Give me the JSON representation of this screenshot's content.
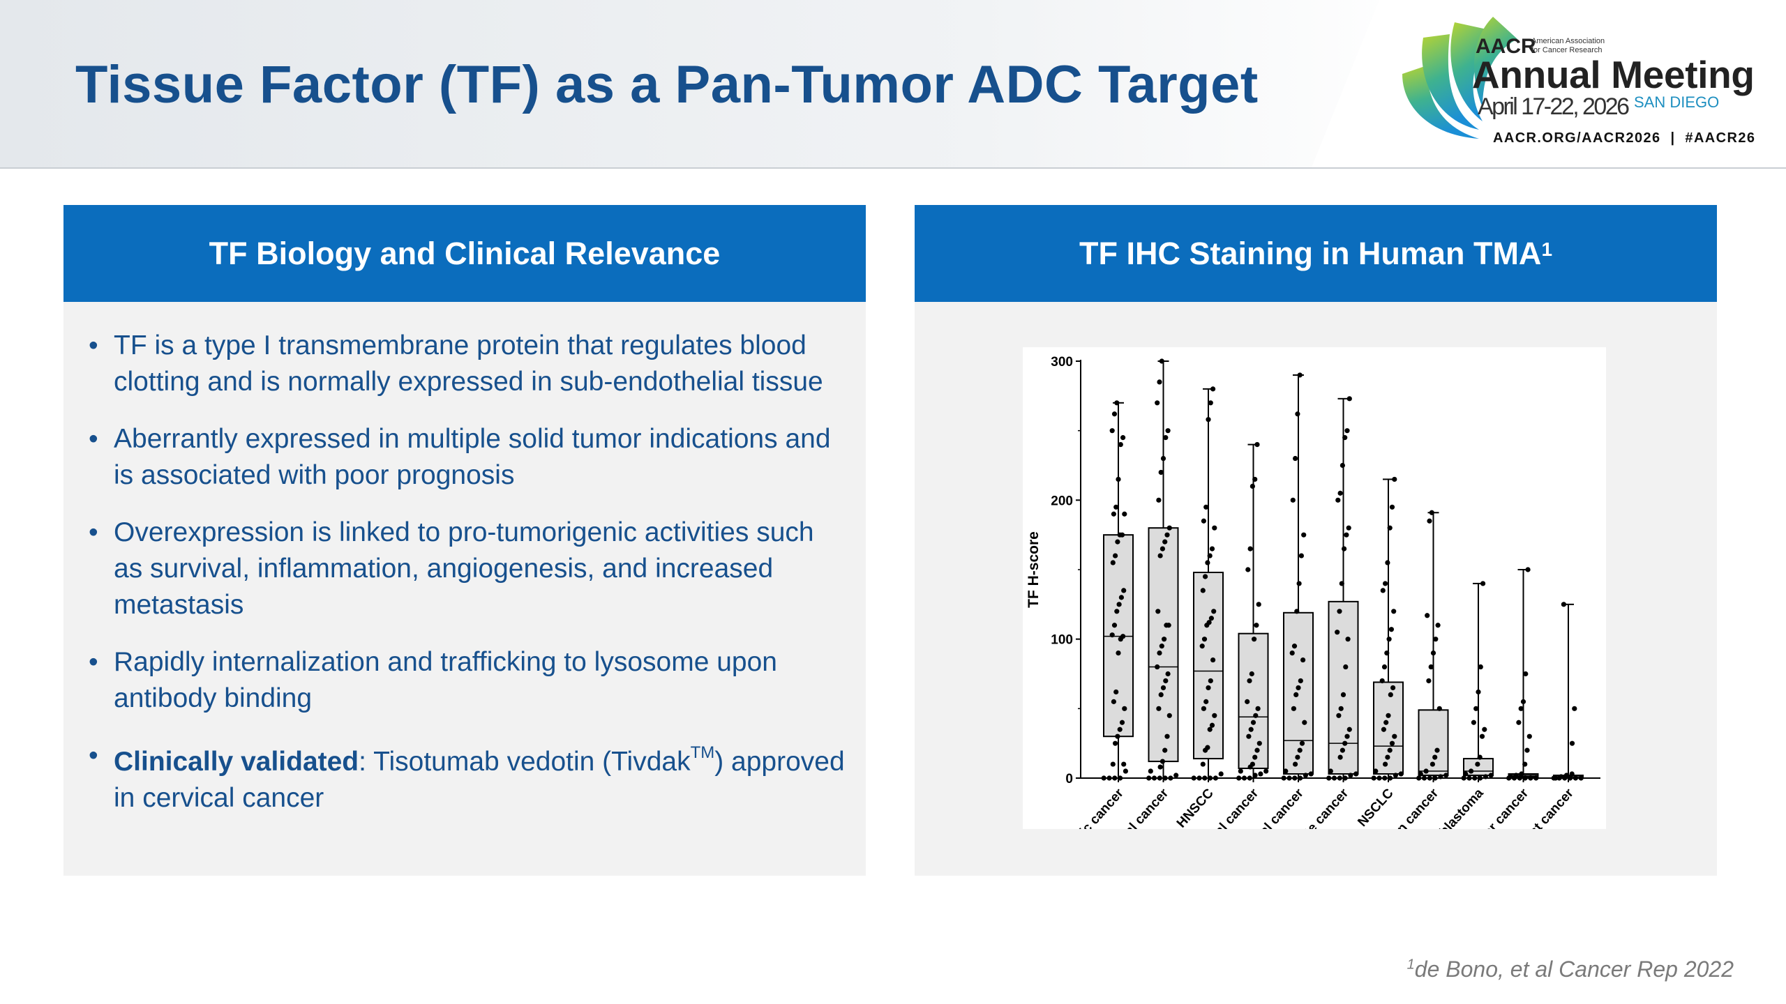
{
  "header": {
    "title": "Tissue Factor (TF) as a Pan-Tumor ADC Target",
    "logo": {
      "org": "AACR",
      "org_full_line1": "American Association",
      "org_full_line2": "for Cancer Research",
      "event": "Annual Meeting",
      "dates": "April 17-22, 2026",
      "city": "SAN DIEGO",
      "links": "AACR.ORG/AACR2026  |  #AACR26"
    }
  },
  "left_panel": {
    "title": "TF Biology and Clinical Relevance",
    "bullets": [
      "TF is a type I transmembrane protein that regulates blood clotting and is normally expressed in sub-endothelial tissue",
      "Aberrantly expressed in multiple solid tumor indications and is associated with poor prognosis",
      "Overexpression is linked to pro-tumorigenic activities such as survival, inflammation, angiogenesis, and increased metastasis",
      "Rapidly internalization and trafficking to lysosome upon antibody binding"
    ],
    "last_bullet": {
      "bold": "Clinically validated",
      "text1": ": Tisotumab vedotin (Tivdak",
      "tm": "TM",
      "text2": ") approved in cervical cancer"
    }
  },
  "right_panel": {
    "title": "TF IHC Staining in Human TMA",
    "title_sup": "1"
  },
  "chart_data": {
    "type": "box",
    "ylabel": "TF H-score",
    "xlabel": "",
    "ylim": [
      0,
      300
    ],
    "yticks": [
      "0",
      "100",
      "200",
      "300"
    ],
    "categories": [
      "Pancreatic cancer",
      "Cervical cancer",
      "HNSCC",
      "Endometrial cancer",
      "Esophageal cancer",
      "Prostate cancer",
      "NSCLC",
      "Ovarian cancer",
      "Glioblastoma",
      "Bladder cancer",
      "Breast cancer"
    ],
    "boxes": [
      {
        "min": 0,
        "q1": 30,
        "median": 102,
        "q3": 175,
        "max": 270
      },
      {
        "min": 0,
        "q1": 12,
        "median": 80,
        "q3": 180,
        "max": 300
      },
      {
        "min": 0,
        "q1": 14,
        "median": 77,
        "q3": 148,
        "max": 280
      },
      {
        "min": 0,
        "q1": 7,
        "median": 44,
        "q3": 104,
        "max": 240
      },
      {
        "min": 0,
        "q1": 3,
        "median": 27,
        "q3": 119,
        "max": 290
      },
      {
        "min": 0,
        "q1": 3,
        "median": 25,
        "q3": 127,
        "max": 273
      },
      {
        "min": 0,
        "q1": 3,
        "median": 23,
        "q3": 69,
        "max": 215
      },
      {
        "min": 0,
        "q1": 2,
        "median": 5,
        "q3": 49,
        "max": 191
      },
      {
        "min": 0,
        "q1": 2,
        "median": 5,
        "q3": 14,
        "max": 140
      },
      {
        "min": 0,
        "q1": 1,
        "median": 2,
        "q3": 3,
        "max": 150
      },
      {
        "min": 0,
        "q1": 0,
        "median": 1,
        "q3": 2,
        "max": 125
      }
    ],
    "points": [
      [
        0,
        0,
        0,
        0,
        5,
        10,
        10,
        25,
        30,
        35,
        40,
        50,
        55,
        62,
        90,
        100,
        102,
        103,
        110,
        120,
        125,
        130,
        135,
        155,
        160,
        170,
        175,
        175,
        190,
        190,
        195,
        215,
        240,
        245,
        250,
        262,
        270
      ],
      [
        0,
        0,
        0,
        0,
        0,
        2,
        5,
        8,
        12,
        20,
        30,
        45,
        50,
        60,
        65,
        70,
        75,
        80,
        90,
        95,
        100,
        110,
        110,
        120,
        160,
        165,
        170,
        175,
        180,
        200,
        220,
        230,
        245,
        250,
        270,
        285,
        300
      ],
      [
        0,
        0,
        0,
        0,
        0,
        3,
        10,
        20,
        22,
        35,
        38,
        45,
        50,
        55,
        65,
        70,
        85,
        95,
        100,
        110,
        112,
        115,
        120,
        135,
        145,
        155,
        160,
        165,
        180,
        185,
        195,
        258,
        270,
        280
      ],
      [
        0,
        0,
        0,
        2,
        3,
        5,
        5,
        8,
        10,
        15,
        20,
        25,
        30,
        35,
        40,
        45,
        50,
        55,
        70,
        75,
        100,
        110,
        125,
        150,
        165,
        210,
        215,
        240
      ],
      [
        0,
        0,
        0,
        0,
        2,
        3,
        5,
        10,
        15,
        20,
        25,
        40,
        50,
        60,
        65,
        70,
        85,
        90,
        95,
        120,
        140,
        160,
        175,
        200,
        230,
        262,
        290
      ],
      [
        0,
        0,
        0,
        0,
        2,
        3,
        5,
        15,
        20,
        25,
        30,
        35,
        45,
        50,
        60,
        80,
        100,
        105,
        120,
        140,
        165,
        175,
        180,
        200,
        205,
        225,
        245,
        250,
        273
      ],
      [
        0,
        0,
        0,
        0,
        2,
        3,
        5,
        10,
        15,
        20,
        25,
        30,
        35,
        40,
        45,
        60,
        65,
        70,
        80,
        90,
        100,
        107,
        120,
        135,
        140,
        155,
        180,
        195,
        215
      ],
      [
        0,
        0,
        0,
        0,
        1,
        2,
        3,
        5,
        10,
        15,
        20,
        50,
        70,
        80,
        90,
        100,
        110,
        117,
        185,
        191
      ],
      [
        0,
        0,
        0,
        0,
        1,
        2,
        3,
        5,
        10,
        15,
        30,
        35,
        40,
        50,
        62,
        80,
        140
      ],
      [
        0,
        0,
        0,
        0,
        0,
        0,
        1,
        2,
        3,
        10,
        20,
        30,
        40,
        50,
        55,
        75,
        150
      ],
      [
        0,
        0,
        0,
        0,
        0,
        0,
        0,
        1,
        2,
        3,
        25,
        50,
        125
      ]
    ]
  },
  "footnote": {
    "sup": "1",
    "text": "de Bono, et al Cancer Rep 2022"
  }
}
